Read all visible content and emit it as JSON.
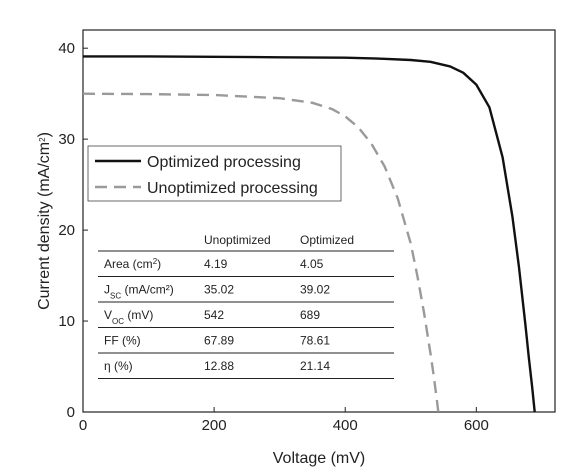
{
  "chart_data": {
    "type": "line",
    "xlabel": "Voltage (mV)",
    "ylabel_main": "Current density (mA/cm",
    "ylabel_sup": "2",
    "ylabel_close": ")",
    "xlim": [
      0,
      720
    ],
    "ylim": [
      0,
      42
    ],
    "xticks": [
      0,
      200,
      400,
      600
    ],
    "yticks": [
      0,
      10,
      20,
      30,
      40
    ],
    "grid": false,
    "legend_position": "upper-left",
    "series": [
      {
        "name": "Optimized processing",
        "color": "#111111",
        "style": "solid",
        "x": [
          0,
          100,
          200,
          300,
          400,
          450,
          500,
          530,
          560,
          580,
          600,
          620,
          640,
          655,
          665,
          675,
          680,
          685,
          689
        ],
        "y": [
          39.1,
          39.1,
          39.05,
          39.0,
          38.95,
          38.85,
          38.7,
          38.5,
          38.0,
          37.3,
          36.0,
          33.5,
          28.0,
          21.5,
          16.0,
          9.5,
          6.0,
          2.8,
          0
        ]
      },
      {
        "name": "Unoptimized processing",
        "color": "#9a9a9a",
        "style": "dashed",
        "x": [
          0,
          100,
          200,
          300,
          350,
          380,
          400,
          420,
          440,
          460,
          480,
          500,
          510,
          520,
          530,
          535,
          540,
          542
        ],
        "y": [
          35.0,
          34.95,
          34.85,
          34.5,
          34.0,
          33.3,
          32.5,
          31.3,
          29.5,
          27.0,
          23.5,
          18.5,
          15.0,
          11.0,
          6.5,
          4.0,
          1.2,
          0
        ]
      }
    ]
  },
  "table": {
    "header_blank": "",
    "col1": "Unoptimized",
    "col2": "Optimized",
    "rows": [
      {
        "label_main": "Area (cm",
        "label_sup": "2",
        "label_sub": "",
        "label_tail": ")",
        "v1": "4.19",
        "v2": "4.05"
      },
      {
        "label_main": "J",
        "label_sup": "",
        "label_sub": "SC",
        "label_tail": " (mA/cm²)",
        "v1": "35.02",
        "v2": "39.02"
      },
      {
        "label_main": "V",
        "label_sup": "",
        "label_sub": "OC",
        "label_tail": " (mV)",
        "v1": "542",
        "v2": "689"
      },
      {
        "label_main": "FF (%)",
        "label_sup": "",
        "label_sub": "",
        "label_tail": "",
        "v1": "67.89",
        "v2": "78.61"
      },
      {
        "label_main": "η (%)",
        "label_sup": "",
        "label_sub": "",
        "label_tail": "",
        "v1": "12.88",
        "v2": "21.14"
      }
    ]
  }
}
